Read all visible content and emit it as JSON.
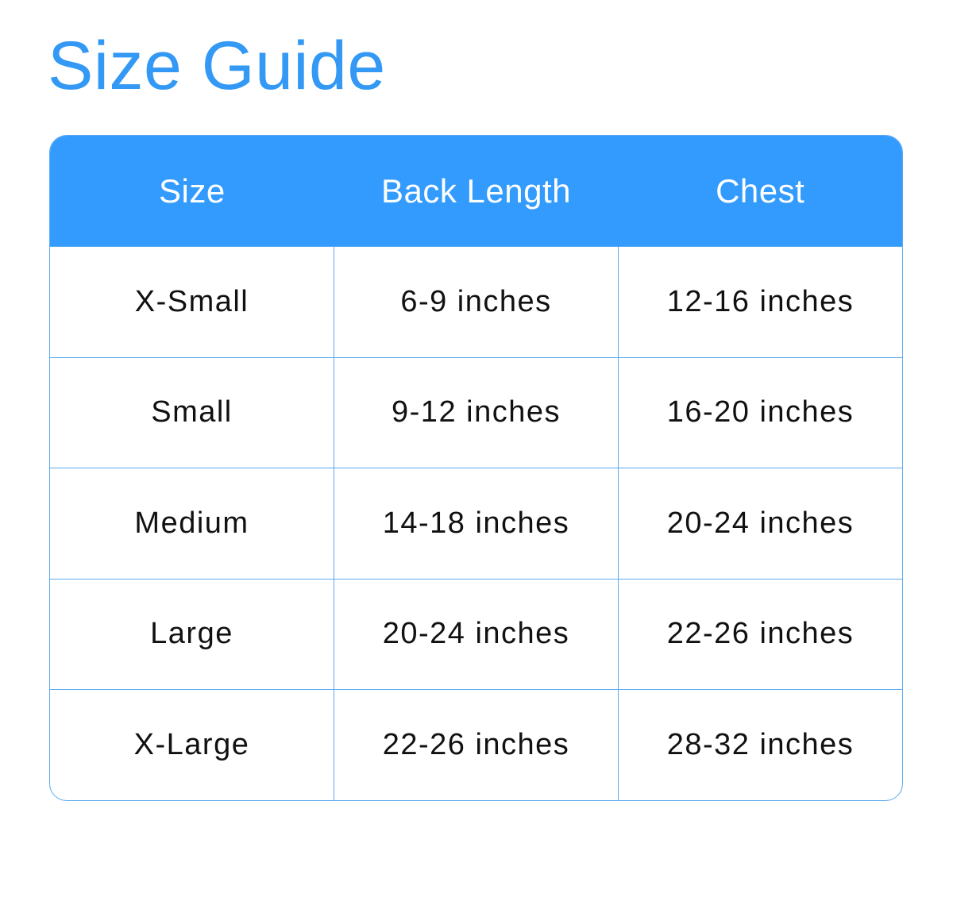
{
  "title": "Size Guide",
  "colors": {
    "accent": "#339bfd",
    "border": "#5aaaf0"
  },
  "table": {
    "headers": [
      "Size",
      "Back Length",
      "Chest"
    ],
    "rows": [
      [
        "X-Small",
        "6-9 inches",
        "12-16 inches"
      ],
      [
        "Small",
        "9-12 inches",
        "16-20 inches"
      ],
      [
        "Medium",
        "14-18 inches",
        "20-24 inches"
      ],
      [
        "Large",
        "20-24 inches",
        "22-26 inches"
      ],
      [
        "X-Large",
        "22-26 inches",
        "28-32 inches"
      ]
    ]
  }
}
